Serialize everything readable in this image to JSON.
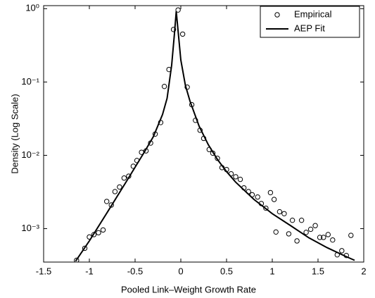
{
  "chart_data": {
    "type": "line",
    "xlabel": "Pooled Link–Weight Growth Rate",
    "ylabel": "Density (Log Scale)",
    "yscale": "log",
    "xlim": [
      -1.5,
      2
    ],
    "ylim": [
      0.00035,
      1.1
    ],
    "xticks": [
      -1.5,
      -1,
      -0.5,
      0,
      0.5,
      1,
      1.5,
      2
    ],
    "yticks": [
      {
        "value": 0.001,
        "label": "10⁻³"
      },
      {
        "value": 0.01,
        "label": "10⁻²"
      },
      {
        "value": 0.1,
        "label": "10⁻¹"
      },
      {
        "value": 1,
        "label": "10⁰"
      }
    ],
    "legend": "upper right",
    "series": [
      {
        "name": "Empirical",
        "type": "scatter",
        "color": "#000000",
        "x": [
          -1.14,
          -1.05,
          -1.0,
          -0.95,
          -0.9,
          -0.85,
          -0.81,
          -0.76,
          -0.72,
          -0.67,
          -0.62,
          -0.57,
          -0.52,
          -0.48,
          -0.43,
          -0.38,
          -0.33,
          -0.28,
          -0.22,
          -0.18,
          -0.13,
          -0.08,
          -0.03,
          0.02,
          0.07,
          0.12,
          0.16,
          0.21,
          0.25,
          0.31,
          0.35,
          0.4,
          0.45,
          0.5,
          0.55,
          0.6,
          0.65,
          0.69,
          0.74,
          0.78,
          0.84,
          0.88,
          0.93,
          0.98,
          1.02,
          1.04,
          1.08,
          1.13,
          1.18,
          1.22,
          1.27,
          1.32,
          1.37,
          1.42,
          1.47,
          1.52,
          1.56,
          1.61,
          1.66,
          1.71,
          1.76,
          1.81,
          1.86
        ],
        "values": [
          0.00037,
          0.00054,
          0.00077,
          0.00083,
          0.00088,
          0.00096,
          0.00235,
          0.0021,
          0.0032,
          0.0037,
          0.0049,
          0.0052,
          0.0071,
          0.0085,
          0.011,
          0.0115,
          0.0147,
          0.0195,
          0.028,
          0.087,
          0.148,
          0.52,
          0.96,
          0.45,
          0.085,
          0.049,
          0.03,
          0.022,
          0.017,
          0.012,
          0.0107,
          0.0091,
          0.0068,
          0.0064,
          0.0056,
          0.0051,
          0.0047,
          0.0036,
          0.0032,
          0.0029,
          0.0027,
          0.0022,
          0.0019,
          0.0031,
          0.0025,
          0.0009,
          0.0017,
          0.0016,
          0.00085,
          0.0013,
          0.00068,
          0.0013,
          0.00089,
          0.00098,
          0.0011,
          0.00076,
          0.00076,
          0.00083,
          0.0007,
          0.00044,
          0.0005,
          0.00043,
          0.00081
        ]
      },
      {
        "name": "AEP Fit",
        "type": "line",
        "color": "#000000",
        "x": [
          -1.15,
          -1.0,
          -0.8,
          -0.6,
          -0.4,
          -0.3,
          -0.2,
          -0.15,
          -0.1,
          -0.07,
          -0.05,
          -0.03,
          0,
          0.05,
          0.1,
          0.2,
          0.3,
          0.4,
          0.5,
          0.6,
          0.8,
          1.0,
          1.2,
          1.4,
          1.6,
          1.8,
          1.9
        ],
        "values": [
          0.00036,
          0.00068,
          0.0017,
          0.0043,
          0.011,
          0.018,
          0.036,
          0.06,
          0.17,
          0.45,
          0.92,
          0.5,
          0.2,
          0.09,
          0.055,
          0.025,
          0.014,
          0.0088,
          0.006,
          0.0043,
          0.0025,
          0.0016,
          0.0011,
          0.00075,
          0.00055,
          0.00042,
          0.00037
        ]
      }
    ]
  }
}
